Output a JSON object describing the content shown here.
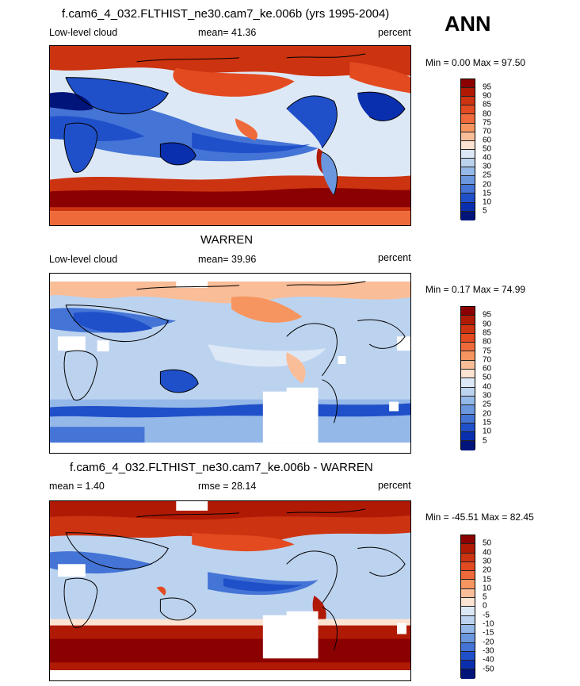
{
  "season": "ANN",
  "panels": [
    {
      "title": "f.cam6_4_032.FLTHIST_ne30.cam7_ke.006b (yrs 1995-2004)",
      "left_label": "Low-level cloud",
      "mid_label": "mean=  41.36",
      "right_label": "percent",
      "minmax": "Min =   0.00 Max =  97.50",
      "colorbar_labels": [
        "95",
        "90",
        "85",
        "80",
        "75",
        "70",
        "60",
        "50",
        "40",
        "30",
        "25",
        "20",
        "15",
        "10",
        "5"
      ]
    },
    {
      "title": "WARREN",
      "left_label": "Low-level cloud",
      "mid_label": "mean=  39.96",
      "right_label": "percent",
      "minmax": "Min =   0.17 Max =  74.99",
      "colorbar_labels": [
        "95",
        "90",
        "85",
        "80",
        "75",
        "70",
        "60",
        "50",
        "40",
        "30",
        "25",
        "20",
        "15",
        "10",
        "5"
      ]
    },
    {
      "title": "f.cam6_4_032.FLTHIST_ne30.cam7_ke.006b - WARREN",
      "left_label": "mean =   1.40",
      "mid_label": "rmse =  28.14",
      "right_label": "percent",
      "minmax": "Min = -45.51 Max =  82.45",
      "colorbar_labels": [
        "50",
        "40",
        "30",
        "20",
        "15",
        "10",
        "5",
        "0",
        "-5",
        "-10",
        "-15",
        "-20",
        "-30",
        "-40",
        "-50"
      ]
    }
  ],
  "colors": {
    "colorbar": [
      "#8b0000",
      "#b01a05",
      "#cc3310",
      "#e34a20",
      "#ef6a3a",
      "#f6955f",
      "#f9bd98",
      "#fde3d2",
      "#dde8f6",
      "#bcd3ef",
      "#94b8e8",
      "#6b97df",
      "#4474d6",
      "#2050c9",
      "#0a2fae",
      "#00147a"
    ]
  }
}
